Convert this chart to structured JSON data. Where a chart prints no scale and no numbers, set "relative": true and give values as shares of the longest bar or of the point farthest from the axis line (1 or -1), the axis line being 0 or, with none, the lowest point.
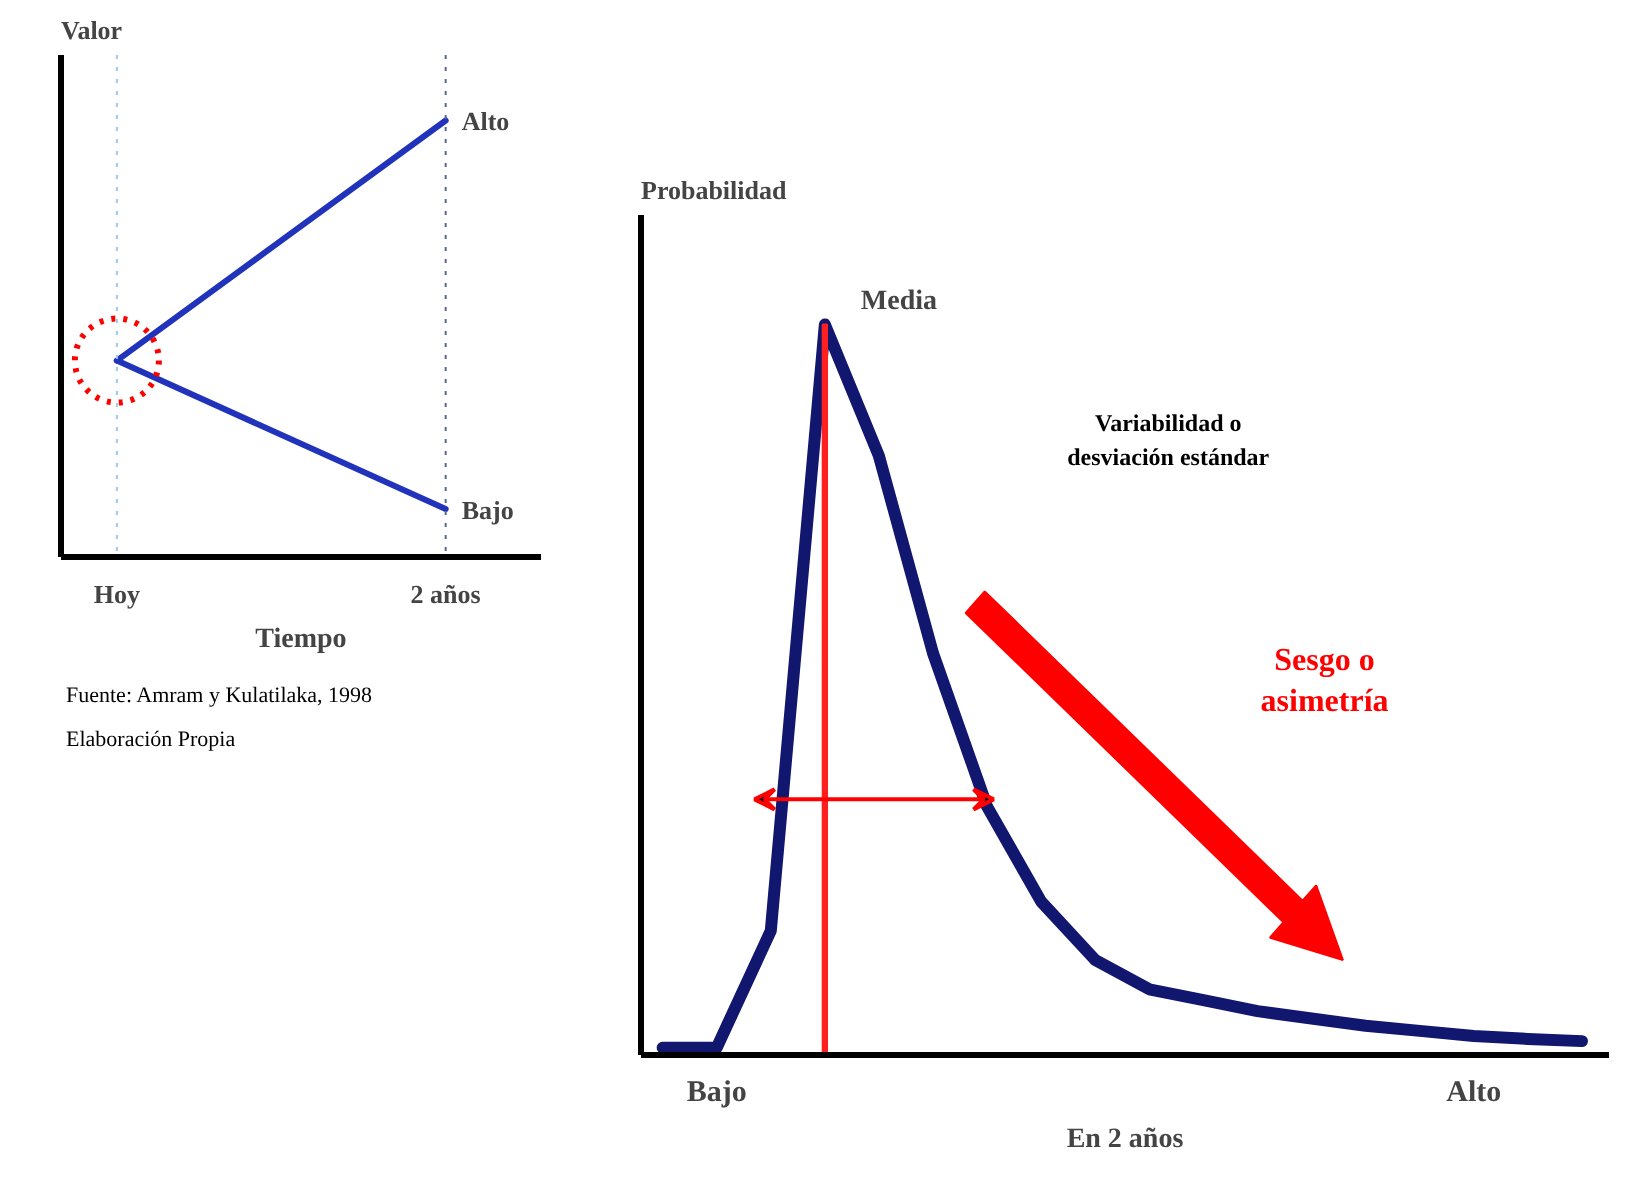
{
  "chart_data": [
    {
      "type": "line",
      "relative": true,
      "ylabel": "Valor",
      "xlabel": "Tiempo",
      "categories": [
        "Hoy",
        "2 años"
      ],
      "series": [
        {
          "name": "Alto",
          "color": "#2233bb",
          "values": [
            0.45,
            1
          ]
        },
        {
          "name": "Bajo",
          "color": "#2233bb",
          "values": [
            0.45,
            0.11
          ]
        }
      ],
      "ref_lines": [
        {
          "axis": "x",
          "value": "Hoy",
          "color": "#99ccee",
          "line_style": "dotted"
        },
        {
          "axis": "x",
          "value": "2 años",
          "color": "#556699",
          "line_style": "dotted"
        }
      ],
      "annotations": [
        "Fuente: Amram y Kulatilaka, 1998",
        "Elaboración Propia"
      ]
    },
    {
      "type": "line",
      "relative": true,
      "ylabel": "Probabilidad",
      "xlabel": "En 2 años",
      "categories": [
        null,
        "Bajo",
        null,
        null,
        null,
        null,
        null,
        null,
        null,
        null,
        null,
        null,
        null,
        null,
        null,
        "Alto",
        null,
        null
      ],
      "series": [
        {
          "color": "#11166e",
          "values": [
            0.01,
            0.01,
            0.17,
            1.0,
            0.82,
            0.55,
            0.34,
            0.21,
            0.13,
            0.09,
            0.075,
            0.06,
            0.05,
            0.04,
            0.033,
            0.026,
            0.022,
            0.019
          ]
        },
        {
          "type": "bar",
          "name": "Media",
          "color": "#ff2020",
          "values": [
            null,
            null,
            null,
            1.0,
            null,
            null,
            null,
            null,
            null,
            null,
            null,
            null,
            null,
            null,
            null,
            null,
            null,
            null
          ]
        }
      ],
      "annotations": [
        "Variabilidad o desviación estándar",
        "Sesgo o asimetría"
      ]
    }
  ]
}
